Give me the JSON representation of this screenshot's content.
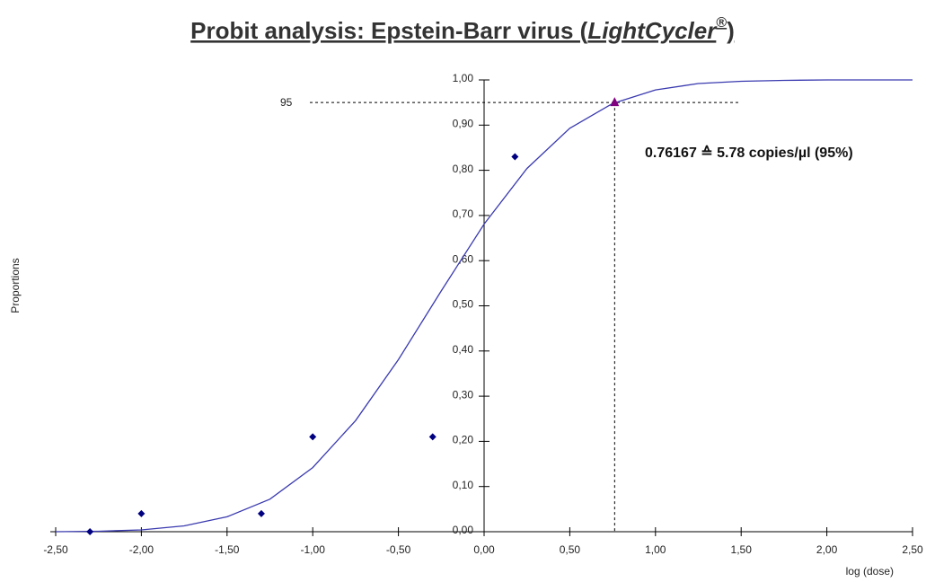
{
  "chart_data": {
    "type": "scatter",
    "title_parts": [
      "Probit analysis: Epstein-Barr virus (",
      "LightCycler",
      "®",
      ")"
    ],
    "ylabel": "Proportions",
    "xlabel": "log (dose)",
    "xlim": [
      -2.5,
      2.5
    ],
    "ylim": [
      0,
      1
    ],
    "xticks": [
      {
        "value": -2.5,
        "label": "-2,50"
      },
      {
        "value": -2,
        "label": "-2,00"
      },
      {
        "value": -1.5,
        "label": "-1,50"
      },
      {
        "value": -1,
        "label": "-1,00"
      },
      {
        "value": -0.5,
        "label": "-0,50"
      },
      {
        "value": 0,
        "label": "0,00"
      },
      {
        "value": 0.5,
        "label": "0,50"
      },
      {
        "value": 1,
        "label": "1,00"
      },
      {
        "value": 1.5,
        "label": "1,50"
      },
      {
        "value": 2,
        "label": "2,00"
      },
      {
        "value": 2.5,
        "label": "2,50"
      }
    ],
    "yticks": [
      {
        "value": 0,
        "label": "0,00"
      },
      {
        "value": 0.1,
        "label": "0,10"
      },
      {
        "value": 0.2,
        "label": "0,20"
      },
      {
        "value": 0.3,
        "label": "0,30"
      },
      {
        "value": 0.4,
        "label": "0,40"
      },
      {
        "value": 0.5,
        "label": "0,50"
      },
      {
        "value": 0.6,
        "label": "0,60"
      },
      {
        "value": 0.7,
        "label": "0,70"
      },
      {
        "value": 0.8,
        "label": "0,80"
      },
      {
        "value": 0.9,
        "label": "0,90"
      },
      {
        "value": 1,
        "label": "1,00"
      }
    ],
    "points": {
      "color": "#000080",
      "x": [
        -2.3,
        -2.0,
        -1.3,
        -1.0,
        -0.3,
        0.18
      ],
      "values": [
        0,
        0.04,
        0.04,
        0.21,
        0.21,
        0.83
      ]
    },
    "curve": {
      "color": "#3a3ab0",
      "x": [
        -2.5,
        -2.25,
        -2,
        -1.75,
        -1.5,
        -1.25,
        -1,
        -0.75,
        -0.5,
        -0.25,
        0,
        0.25,
        0.5,
        0.75,
        1,
        1.25,
        1.5,
        1.75,
        2,
        2.25,
        2.5
      ],
      "values": [
        0.0,
        0.001,
        0.004,
        0.013,
        0.033,
        0.072,
        0.142,
        0.246,
        0.381,
        0.533,
        0.681,
        0.804,
        0.893,
        0.948,
        0.978,
        0.992,
        0.997,
        0.999,
        1.0,
        1.0,
        1.0
      ]
    },
    "marker": {
      "x": 0.76167,
      "y": 0.95,
      "color": "#800080"
    },
    "reference_label": "95",
    "annotation": "0.76167 ≙ 5.78 copies/µl (95%)"
  }
}
